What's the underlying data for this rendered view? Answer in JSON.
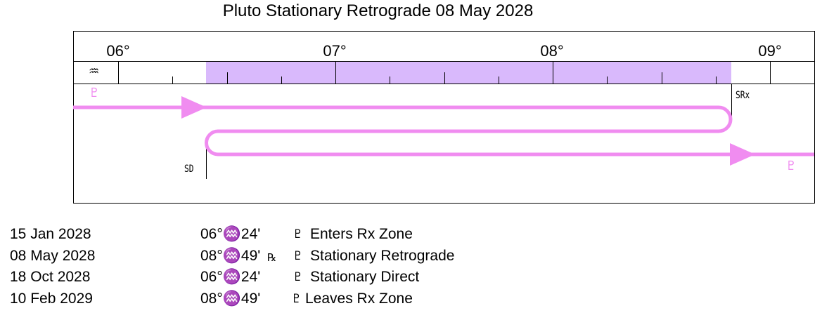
{
  "title": "Pluto Stationary Retrograde  08 May 2028",
  "chart": {
    "degree_labels": [
      "06°",
      "07°",
      "08°",
      "09°"
    ],
    "sign_glyph": "♒",
    "planet_glyph": "♇",
    "station_retrograde_label": "SRx",
    "station_direct_label": "SD",
    "rx_zone_start": "06°♒24'",
    "rx_zone_end": "08°♒49'",
    "colors": {
      "path": "#f08cf0",
      "zone": "#d9b9fc",
      "line": "#000000"
    }
  },
  "events": [
    {
      "date": "15 Jan 2028",
      "position": "06°♒24'",
      "rx": "",
      "glyph": "♇",
      "label": "Enters Rx Zone"
    },
    {
      "date": "08 May 2028",
      "position": "08°♒49'",
      "rx": "℞",
      "glyph": "♇",
      "label": "Stationary Retrograde"
    },
    {
      "date": "18 Oct 2028",
      "position": "06°♒24'",
      "rx": "",
      "glyph": "♇",
      "label": "Stationary Direct"
    },
    {
      "date": "10 Feb 2029",
      "position": "08°♒49'",
      "rx": "",
      "glyph": "♇",
      "label": "Leaves Rx Zone"
    }
  ]
}
